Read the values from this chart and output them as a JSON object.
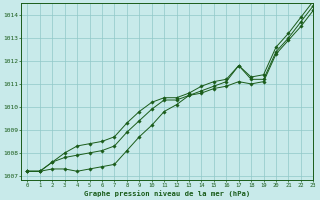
{
  "xlabel": "Graphe pression niveau de la mer (hPa)",
  "xlim": [
    -0.5,
    23
  ],
  "ylim": [
    1006.8,
    1014.5
  ],
  "yticks": [
    1007,
    1008,
    1009,
    1010,
    1011,
    1012,
    1013,
    1014
  ],
  "xticks": [
    0,
    1,
    2,
    3,
    4,
    5,
    6,
    7,
    8,
    9,
    10,
    11,
    12,
    13,
    14,
    15,
    16,
    17,
    18,
    19,
    20,
    21,
    22,
    23
  ],
  "background_color": "#c8eaea",
  "grid_color": "#90c8c8",
  "line_color": "#1a5c1a",
  "series": [
    [
      1007.2,
      1007.2,
      1007.3,
      1007.3,
      1007.2,
      1007.3,
      1007.4,
      1007.5,
      1008.1,
      1008.7,
      1009.2,
      1009.8,
      1010.1,
      1010.5,
      1010.6,
      1010.8,
      1010.9,
      1011.1,
      1011.0,
      1011.1,
      1012.3,
      1012.9,
      1013.5,
      1014.2
    ],
    [
      1007.2,
      1007.2,
      1007.6,
      1007.8,
      1007.9,
      1008.0,
      1008.1,
      1008.3,
      1008.9,
      1009.4,
      1009.9,
      1010.3,
      1010.3,
      1010.5,
      1010.7,
      1010.9,
      1011.1,
      1011.8,
      1011.2,
      1011.2,
      1012.4,
      1013.0,
      1013.7,
      1014.4
    ],
    [
      1007.2,
      1007.2,
      1007.6,
      1008.0,
      1008.3,
      1008.4,
      1008.5,
      1008.7,
      1009.3,
      1009.8,
      1010.2,
      1010.4,
      1010.4,
      1010.6,
      1010.9,
      1011.1,
      1011.2,
      1011.8,
      1011.3,
      1011.4,
      1012.6,
      1013.2,
      1013.9,
      1014.6
    ]
  ],
  "figsize": [
    3.2,
    2.0
  ],
  "dpi": 100
}
